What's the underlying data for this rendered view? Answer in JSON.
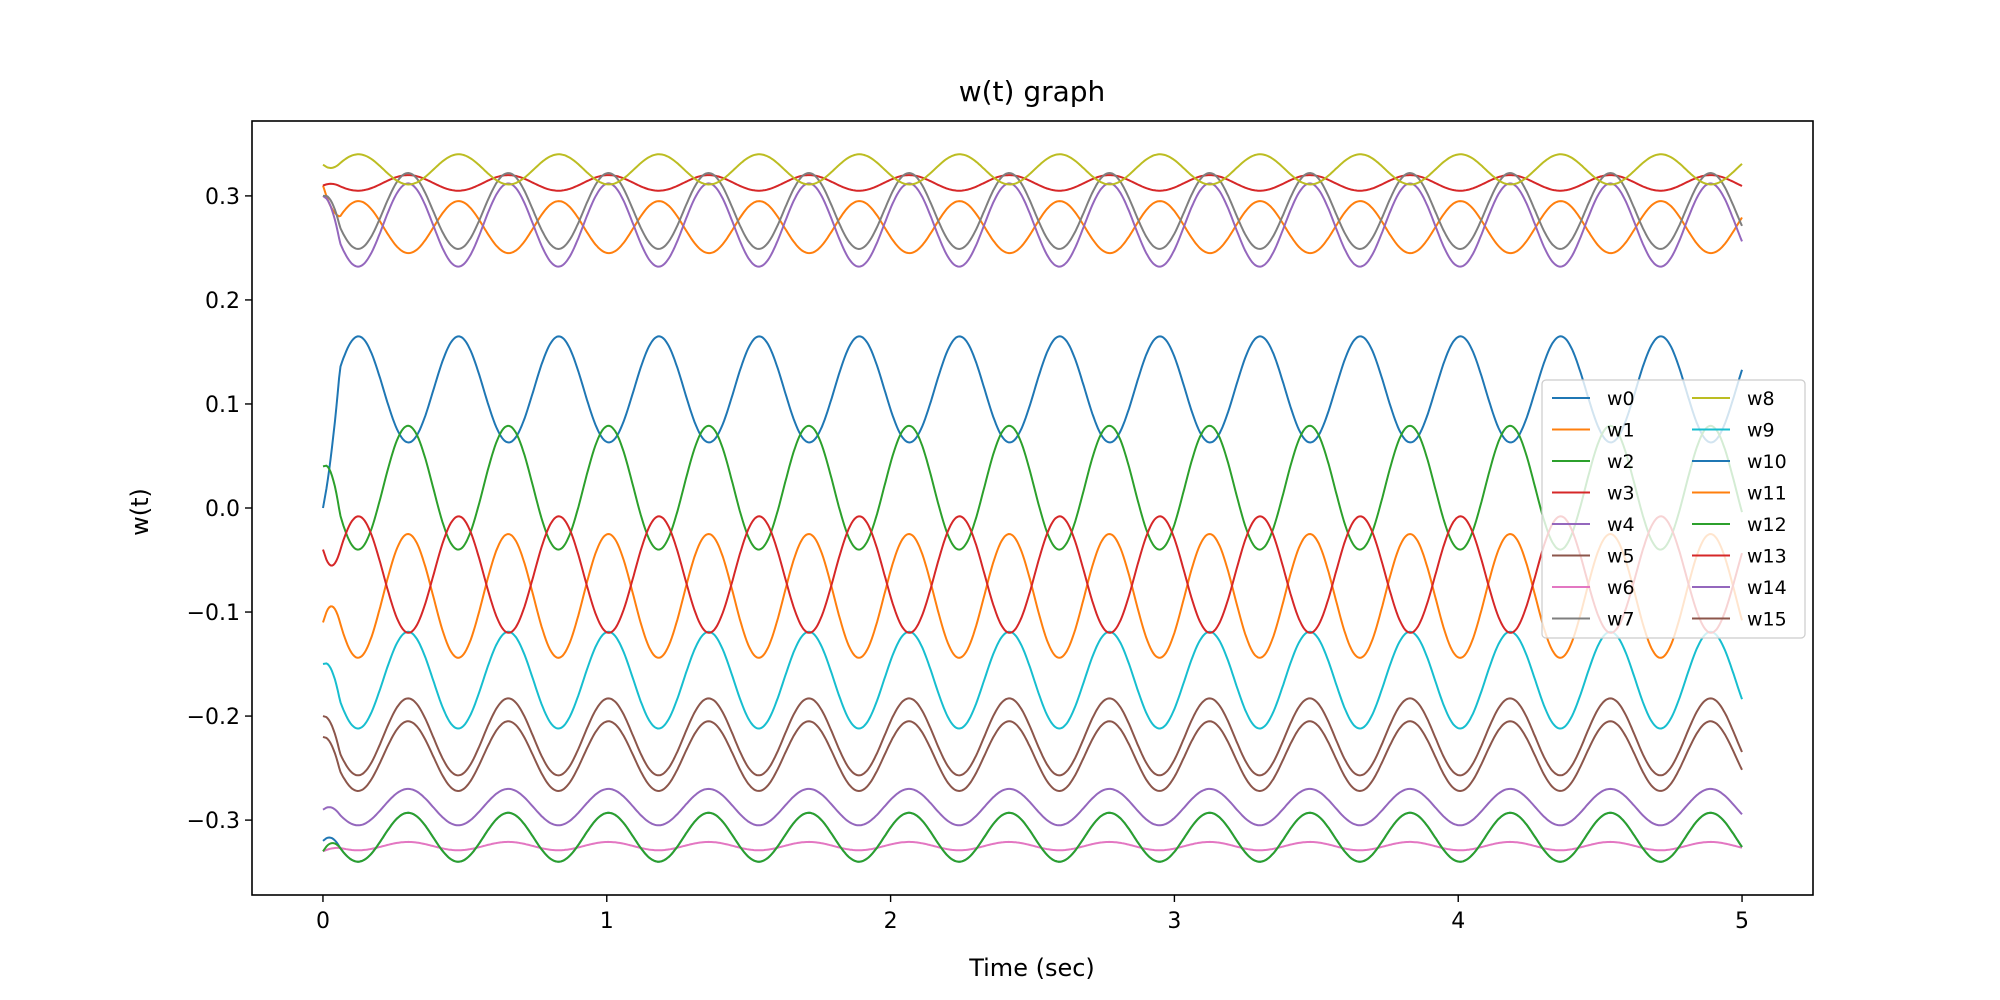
{
  "chart_data": {
    "type": "line",
    "title": "w(t) graph",
    "xlabel": "Time (sec)",
    "ylabel": "w(t)",
    "xlim": [
      -0.25,
      5.25
    ],
    "ylim": [
      -0.372,
      0.372
    ],
    "xticks": [
      0,
      1,
      2,
      3,
      4,
      5
    ],
    "xtick_labels": [
      "0",
      "1",
      "2",
      "3",
      "4",
      "5"
    ],
    "yticks": [
      -0.3,
      -0.2,
      -0.1,
      0.0,
      0.1,
      0.2,
      0.3
    ],
    "ytick_labels": [
      "−0.3",
      "−0.2",
      "−0.1",
      "0.0",
      "0.1",
      "0.2",
      "0.3"
    ],
    "grid": false,
    "legend_position": "center-right",
    "legend_columns": 2,
    "period": 0.353,
    "series": [
      {
        "name": "w0",
        "color": "#1f77b4",
        "start": 0.0,
        "peak_values": [
          0.165,
          0.063
        ],
        "phase": 0.125
      },
      {
        "name": "w1",
        "color": "#ff7f0e",
        "start": 0.31,
        "peak_values": [
          0.295,
          0.245
        ],
        "phase": 0.125
      },
      {
        "name": "w2",
        "color": "#2ca02c",
        "start": 0.04,
        "peak_values": [
          0.079,
          -0.04
        ],
        "phase": 0.3
      },
      {
        "name": "w3",
        "color": "#d62728",
        "start": 0.31,
        "peak_values": [
          0.32,
          0.305
        ],
        "phase": 0.3
      },
      {
        "name": "w4",
        "color": "#9467bd",
        "start": 0.3,
        "peak_values": [
          0.312,
          0.232
        ],
        "phase": 0.3
      },
      {
        "name": "w5",
        "color": "#8c564b",
        "start": -0.2,
        "peak_values": [
          -0.183,
          -0.257
        ],
        "phase": 0.3
      },
      {
        "name": "w6",
        "color": "#e377c2",
        "start": -0.33,
        "peak_values": [
          -0.321,
          -0.329
        ],
        "phase": 0.3
      },
      {
        "name": "w7",
        "color": "#7f7f7f",
        "start": 0.3,
        "peak_values": [
          0.322,
          0.249
        ],
        "phase": 0.3
      },
      {
        "name": "w8",
        "color": "#bcbd22",
        "start": 0.33,
        "peak_values": [
          0.34,
          0.311
        ],
        "phase": 0.125
      },
      {
        "name": "w9",
        "color": "#17becf",
        "start": -0.15,
        "peak_values": [
          -0.119,
          -0.212
        ],
        "phase": 0.3
      },
      {
        "name": "w10",
        "color": "#1f77b4",
        "start": -0.32,
        "peak_values": [
          -0.293,
          -0.34
        ],
        "phase": 0.3
      },
      {
        "name": "w11",
        "color": "#ff7f0e",
        "start": -0.11,
        "peak_values": [
          -0.025,
          -0.144
        ],
        "phase": 0.3
      },
      {
        "name": "w12",
        "color": "#2ca02c",
        "start": -0.33,
        "peak_values": [
          -0.293,
          -0.34
        ],
        "phase": 0.3
      },
      {
        "name": "w13",
        "color": "#d62728",
        "start": -0.04,
        "peak_values": [
          -0.008,
          -0.12
        ],
        "phase": 0.125
      },
      {
        "name": "w14",
        "color": "#9467bd",
        "start": -0.29,
        "peak_values": [
          -0.27,
          -0.305
        ],
        "phase": 0.3
      },
      {
        "name": "w15",
        "color": "#8c564b",
        "start": -0.22,
        "peak_values": [
          -0.205,
          -0.272
        ],
        "phase": 0.3
      }
    ]
  }
}
